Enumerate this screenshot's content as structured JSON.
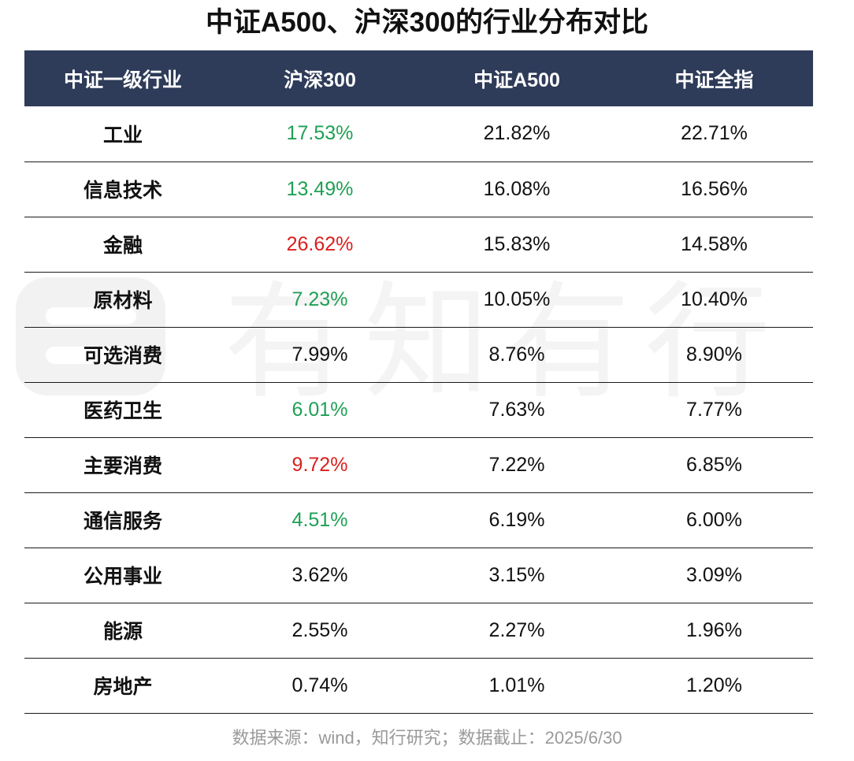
{
  "title": "中证A500、沪深300的行业分布对比",
  "colors": {
    "header_bg": "#2e3b59",
    "header_text": "#ffffff",
    "green": "#1fa055",
    "red": "#d9201e",
    "default": "#111111",
    "footer": "#9a9a9a"
  },
  "chart_data": {
    "type": "table",
    "columns": [
      "中证一级行业",
      "沪深300",
      "中证A500",
      "中证全指"
    ],
    "rows": [
      {
        "category": "工业",
        "hs300": "17.53%",
        "a500": "21.82%",
        "all": "22.71%",
        "hs300_color": "green"
      },
      {
        "category": "信息技术",
        "hs300": "13.49%",
        "a500": "16.08%",
        "all": "16.56%",
        "hs300_color": "green"
      },
      {
        "category": "金融",
        "hs300": "26.62%",
        "a500": "15.83%",
        "all": "14.58%",
        "hs300_color": "red"
      },
      {
        "category": "原材料",
        "hs300": "7.23%",
        "a500": "10.05%",
        "all": "10.40%",
        "hs300_color": "green"
      },
      {
        "category": "可选消费",
        "hs300": "7.99%",
        "a500": "8.76%",
        "all": "8.90%",
        "hs300_color": "default"
      },
      {
        "category": "医药卫生",
        "hs300": "6.01%",
        "a500": "7.63%",
        "all": "7.77%",
        "hs300_color": "green"
      },
      {
        "category": "主要消费",
        "hs300": "9.72%",
        "a500": "7.22%",
        "all": "6.85%",
        "hs300_color": "red"
      },
      {
        "category": "通信服务",
        "hs300": "4.51%",
        "a500": "6.19%",
        "all": "6.00%",
        "hs300_color": "green"
      },
      {
        "category": "公用事业",
        "hs300": "3.62%",
        "a500": "3.15%",
        "all": "3.09%",
        "hs300_color": "default"
      },
      {
        "category": "能源",
        "hs300": "2.55%",
        "a500": "2.27%",
        "all": "1.96%",
        "hs300_color": "default"
      },
      {
        "category": "房地产",
        "hs300": "0.74%",
        "a500": "1.01%",
        "all": "1.20%",
        "hs300_color": "default"
      }
    ]
  },
  "watermark": {
    "text": "有知有行",
    "icon": "brand-logo-icon"
  },
  "footer": "数据来源：wind，知行研究；数据截止：2025/6/30"
}
